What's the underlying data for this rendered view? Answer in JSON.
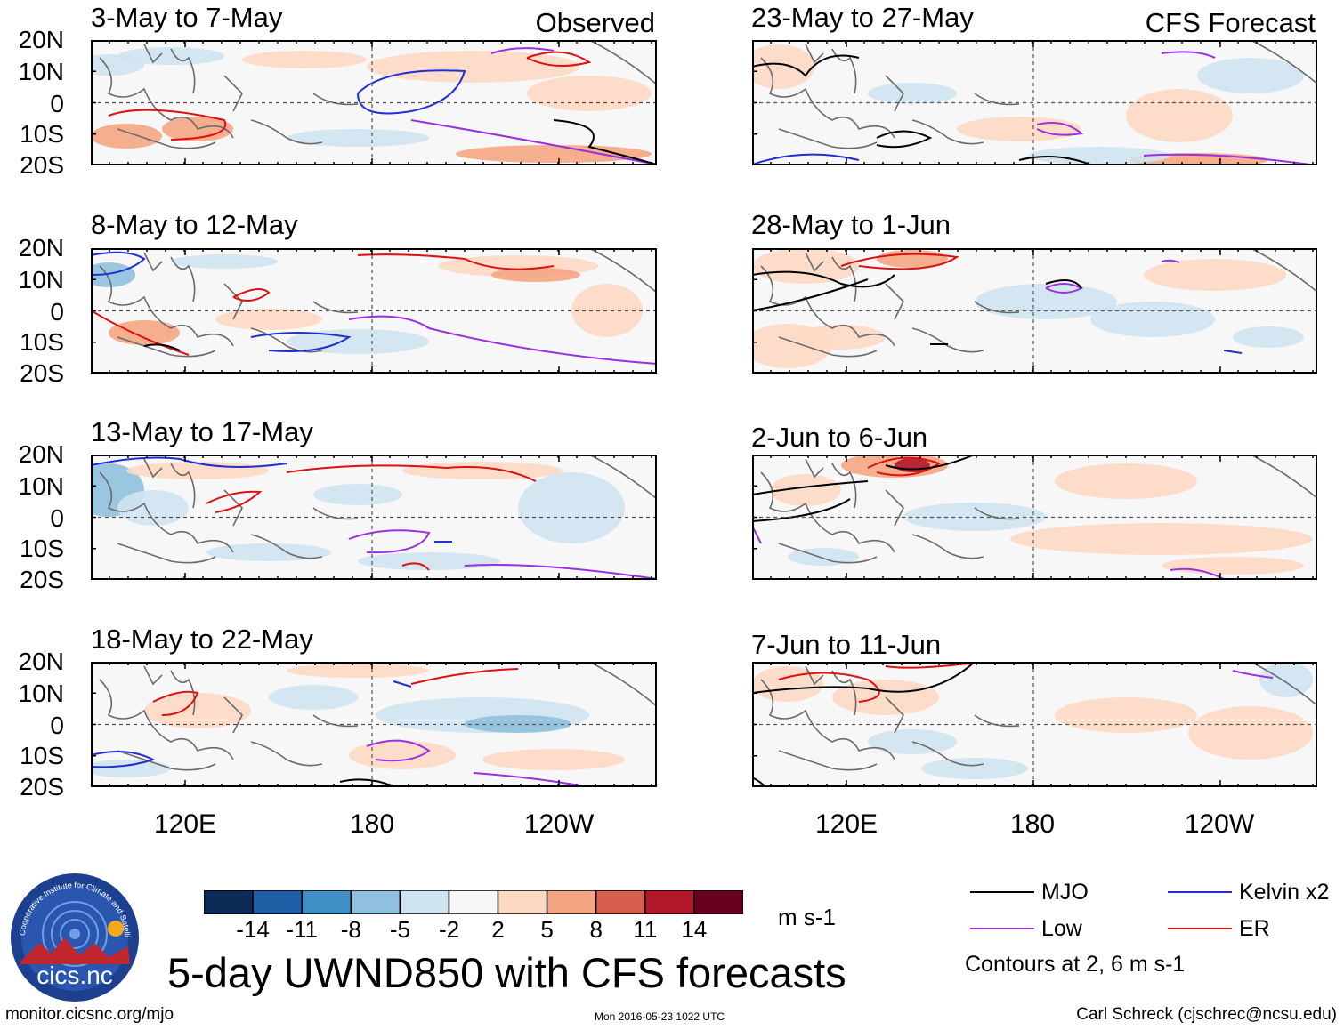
{
  "panels": [
    {
      "title": "3-May to 7-May",
      "corner": "Observed"
    },
    {
      "title": "8-May to 12-May",
      "corner": ""
    },
    {
      "title": "13-May to 17-May",
      "corner": ""
    },
    {
      "title": "18-May to 22-May",
      "corner": ""
    },
    {
      "title": "23-May to 27-May",
      "corner": "CFS Forecast"
    },
    {
      "title": "28-May to 1-Jun",
      "corner": ""
    },
    {
      "title": "2-Jun to 6-Jun",
      "corner": ""
    },
    {
      "title": "7-Jun to 11-Jun",
      "corner": ""
    }
  ],
  "lat_labels": [
    "20N",
    "10N",
    "0",
    "10S",
    "20S"
  ],
  "lon_labels": [
    "120E",
    "180",
    "120W"
  ],
  "colorbar": {
    "colors": [
      "#0d2b57",
      "#1f5fa6",
      "#3f8fc5",
      "#8fc0dd",
      "#cfe3f0",
      "#f7f7f7",
      "#fdd9c4",
      "#f4a582",
      "#d6604d",
      "#b2182b",
      "#67001f"
    ],
    "labels": [
      "-14",
      "-11",
      "-8",
      "-5",
      "-2",
      "2",
      "5",
      "8",
      "11",
      "14"
    ],
    "units": "m s-1"
  },
  "legend": {
    "items": [
      {
        "label": "MJO",
        "color": "#000000"
      },
      {
        "label": "Kelvin x2",
        "color": "#1f2fd6"
      },
      {
        "label": "Low",
        "color": "#9b30e0"
      },
      {
        "label": "ER",
        "color": "#e01010"
      }
    ],
    "note": "Contours at 2, 6 m s-1"
  },
  "main_title": "5-day UWND850 with CFS forecasts",
  "logo_text": "cics.nc",
  "logo_ring_text": "Cooperative Institute for Climate and Satellites",
  "footer": {
    "left": "monitor.cicsnc.org/mjo",
    "center": "Mon 2016-05-23 1022 UTC",
    "right": "Carl Schreck (cjschrec@ncsu.edu)"
  }
}
